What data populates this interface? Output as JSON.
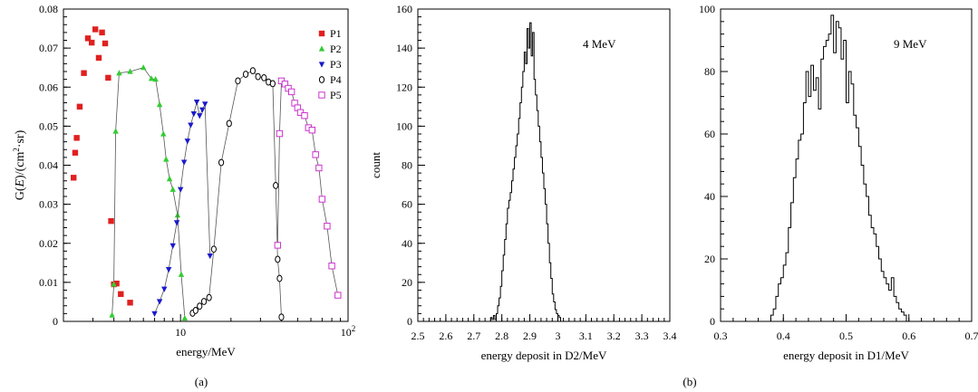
{
  "panel_labels": {
    "a": "(a)",
    "b": "(b)"
  },
  "chart_data": [
    {
      "type": "scatter",
      "xscale": "log",
      "xlim": [
        2,
        100
      ],
      "ylim": [
        0,
        0.08
      ],
      "xlabel": "energy/MeV",
      "ylabel_parts": [
        "G(",
        "E",
        ")/(cm",
        "2",
        "·sr)"
      ],
      "xticks": [
        10,
        100
      ],
      "xtick_labels": [
        {
          "base": "10",
          "exp": ""
        },
        {
          "base": "10",
          "exp": "2"
        }
      ],
      "yticks": [
        0,
        0.01,
        0.02,
        0.03,
        0.04,
        0.05,
        0.06,
        0.07,
        0.08
      ],
      "ytick_labels": [
        "0",
        "0.01",
        "0.02",
        "0.03",
        "0.04",
        "0.05",
        "0.06",
        "0.07",
        "0.08"
      ],
      "grid": false,
      "legend_position": "top-right",
      "series": [
        {
          "name": "P1",
          "color": "#e02020",
          "marker": "square-filled",
          "x": [
            2.3,
            2.35,
            2.4,
            2.5,
            2.65,
            2.8,
            2.95,
            3.1,
            3.25,
            3.4,
            3.55,
            3.7,
            3.85,
            4.0,
            4.15,
            4.4,
            5.0
          ],
          "y": [
            0.0368,
            0.0432,
            0.047,
            0.055,
            0.0636,
            0.0725,
            0.0714,
            0.0748,
            0.0675,
            0.074,
            0.0712,
            0.0624,
            0.0257,
            0.0095,
            0.0097,
            0.007,
            0.0048
          ]
        },
        {
          "name": "P2",
          "color": "#33cc33",
          "marker": "triangle-up-filled",
          "x": [
            3.9,
            4.0,
            4.1,
            4.3,
            5.0,
            6.0,
            6.7,
            7.1,
            7.5,
            7.9,
            8.2,
            8.6,
            9.0,
            9.6,
            10.1,
            10.6
          ],
          "y": [
            0.0016,
            0.0095,
            0.0487,
            0.0636,
            0.064,
            0.065,
            0.0622,
            0.062,
            0.0555,
            0.048,
            0.0415,
            0.0365,
            0.0338,
            0.0272,
            0.012,
            0.0008
          ]
        },
        {
          "name": "P3",
          "color": "#1a1acc",
          "marker": "triangle-down-filled",
          "x": [
            7.0,
            7.5,
            8.0,
            8.5,
            9.0,
            9.5,
            10.0,
            10.5,
            11.0,
            11.5,
            12.0,
            12.5,
            13.0,
            13.5,
            14.0,
            15.0
          ],
          "y": [
            0.002,
            0.0051,
            0.0083,
            0.0133,
            0.0194,
            0.0253,
            0.0338,
            0.0408,
            0.0462,
            0.0503,
            0.0532,
            0.0562,
            0.0527,
            0.0542,
            0.0557,
            0.0168
          ]
        },
        {
          "name": "P4",
          "color": "#000000",
          "marker": "circle-open",
          "x": [
            11.8,
            12.3,
            13.0,
            13.8,
            14.8,
            15.8,
            17.5,
            19.5,
            22.0,
            24.5,
            27.0,
            29.0,
            31.5,
            33.5,
            35.5,
            37.0,
            38.0,
            39.0,
            40.0
          ],
          "y": [
            0.0021,
            0.0028,
            0.0039,
            0.0051,
            0.0061,
            0.0185,
            0.0407,
            0.0507,
            0.0616,
            0.0633,
            0.0642,
            0.0627,
            0.0624,
            0.0613,
            0.0609,
            0.0348,
            0.0159,
            0.011,
            0.0011
          ]
        },
        {
          "name": "P5",
          "color": "#cc33cc",
          "marker": "square-open",
          "x": [
            38.0,
            39.0,
            40.0,
            42.0,
            44.0,
            46.0,
            48.0,
            50.0,
            52.0,
            55.0,
            58.0,
            61.0,
            64.0,
            67.0,
            70.0,
            75.0,
            80.0,
            87.0
          ],
          "y": [
            0.0195,
            0.0481,
            0.0616,
            0.0608,
            0.0597,
            0.0588,
            0.0559,
            0.0547,
            0.0535,
            0.0527,
            0.0496,
            0.049,
            0.0427,
            0.0393,
            0.0313,
            0.0244,
            0.0142,
            0.0067
          ]
        }
      ]
    },
    {
      "type": "histogram",
      "annotation": "4 MeV",
      "xlabel": "energy deposit in D2/MeV",
      "ylabel": "count",
      "xlim": [
        2.5,
        3.4
      ],
      "ylim": [
        0,
        160
      ],
      "xticks": [
        2.5,
        2.6,
        2.7,
        2.8,
        2.9,
        3.0,
        3.1,
        3.2,
        3.3,
        3.4
      ],
      "xtick_labels": [
        "2.5",
        "2.6",
        "2.7",
        "2.8",
        "2.9",
        "3",
        "3.1",
        "3.2",
        "3.3",
        "3.4"
      ],
      "yticks": [
        0,
        20,
        40,
        60,
        80,
        100,
        120,
        140,
        160
      ],
      "ytick_labels": [
        "0",
        "20",
        "40",
        "60",
        "80",
        "100",
        "120",
        "140",
        "160"
      ],
      "grid": false,
      "bin_start": 2.76,
      "bin_width": 0.005,
      "counts": [
        2,
        1,
        3,
        1,
        4,
        8,
        12,
        18,
        26,
        34,
        42,
        50,
        58,
        62,
        66,
        72,
        78,
        84,
        90,
        96,
        104,
        112,
        120,
        128,
        138,
        132,
        150,
        140,
        153,
        136,
        148,
        124,
        116,
        108,
        100,
        92,
        84,
        76,
        68,
        60,
        50,
        40,
        30,
        22,
        14,
        10,
        6,
        4,
        3,
        2
      ]
    },
    {
      "type": "histogram",
      "annotation": "9 MeV",
      "xlabel": "energy deposit in D1/MeV",
      "ylabel": "",
      "xlim": [
        0.3,
        0.7
      ],
      "ylim": [
        0,
        100
      ],
      "xticks": [
        0.3,
        0.4,
        0.5,
        0.6,
        0.7
      ],
      "xtick_labels": [
        "0.3",
        "0.4",
        "0.5",
        "0.6",
        "0.7"
      ],
      "yticks": [
        0,
        20,
        40,
        60,
        80,
        100
      ],
      "ytick_labels": [
        "0",
        "20",
        "40",
        "60",
        "80",
        "100"
      ],
      "grid": false,
      "bin_start": 0.38,
      "bin_width": 0.004,
      "counts": [
        2,
        4,
        8,
        12,
        14,
        18,
        22,
        30,
        38,
        46,
        52,
        58,
        60,
        70,
        80,
        72,
        82,
        74,
        78,
        68,
        84,
        88,
        90,
        92,
        98,
        86,
        96,
        94,
        84,
        90,
        70,
        80,
        76,
        66,
        62,
        56,
        50,
        44,
        40,
        34,
        30,
        28,
        24,
        20,
        16,
        14,
        12,
        10,
        14,
        8,
        6,
        4,
        3,
        2
      ]
    }
  ]
}
